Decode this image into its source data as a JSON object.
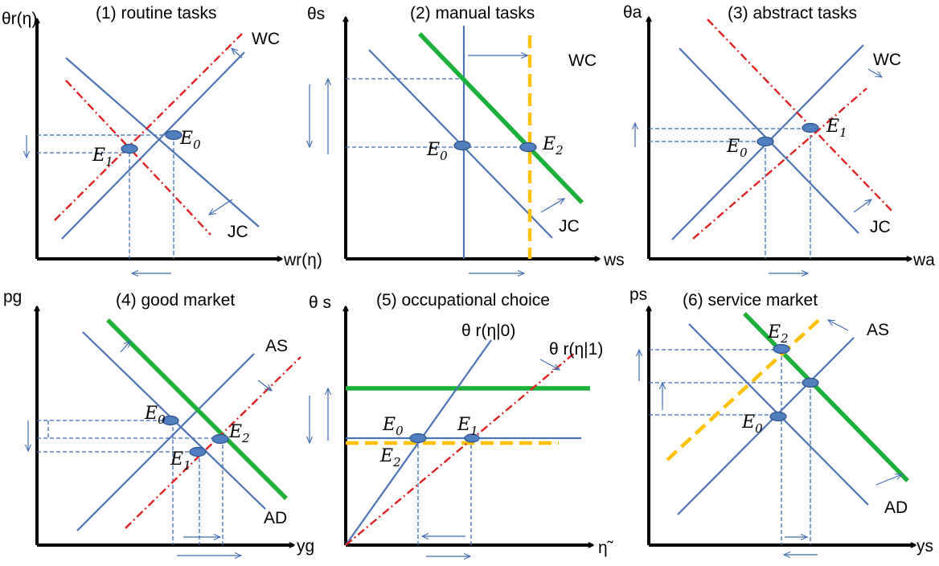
{
  "colors": {
    "axis": "#000000",
    "blue_line": "#4a74b5",
    "red_dashdot": "#e02020",
    "green_line": "#1bb03a",
    "orange_dash": "#ffc000",
    "guide_dash": "#3f6cb4",
    "marker_fill": "#4f7fbf",
    "marker_stroke": "#2c4f8c"
  },
  "panels": [
    {
      "id": "routine",
      "title": "(1) routine tasks",
      "ylabel": "θr(η)",
      "xlabel": "wr(η)",
      "curve_labels": [
        "WC",
        "JC"
      ],
      "points": [
        {
          "base": "E",
          "sub": "0"
        },
        {
          "base": "E",
          "sub": "1"
        }
      ]
    },
    {
      "id": "manual",
      "title": "(2) manual tasks",
      "ylabel": "θs",
      "xlabel": "ws",
      "curve_labels": [
        "WC",
        "JC"
      ],
      "points": [
        {
          "base": "E",
          "sub": "0"
        },
        {
          "base": "E",
          "sub": "2"
        }
      ]
    },
    {
      "id": "abstract",
      "title": "(3) abstract tasks",
      "ylabel": "θa",
      "xlabel": "wa",
      "curve_labels": [
        "WC",
        "JC"
      ],
      "points": [
        {
          "base": "E",
          "sub": "0"
        },
        {
          "base": "E",
          "sub": "1"
        }
      ]
    },
    {
      "id": "good",
      "title": "(4) good market",
      "ylabel": "pg",
      "xlabel": "yg",
      "curve_labels": [
        "AS",
        "AD"
      ],
      "points": [
        {
          "base": "E",
          "sub": "0"
        },
        {
          "base": "E",
          "sub": "2"
        },
        {
          "base": "E",
          "sub": "1"
        }
      ]
    },
    {
      "id": "occupational",
      "title": "(5) occupational choice",
      "ylabel": "θ s",
      "xlabel": "η̃",
      "curve_labels": [
        "θ r(η|0)",
        "θ r(η|1)"
      ],
      "points": [
        {
          "base": "E",
          "sub": "0"
        },
        {
          "base": "E",
          "sub": "1"
        },
        {
          "base": "E",
          "sub": "2"
        }
      ]
    },
    {
      "id": "service",
      "title": "(6) service market",
      "ylabel": "ps",
      "xlabel": "ys",
      "curve_labels": [
        "AS",
        "AD"
      ],
      "points": [
        {
          "base": "E",
          "sub": "2"
        },
        {
          "base": "E",
          "sub": "0"
        }
      ]
    }
  ]
}
